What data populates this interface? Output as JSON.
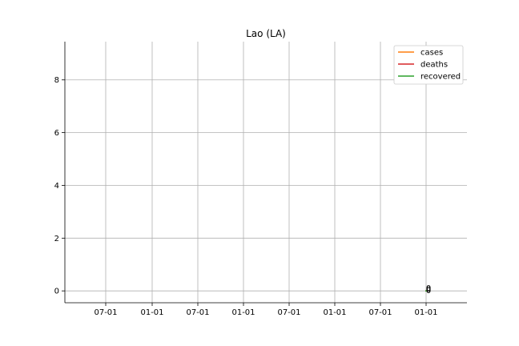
{
  "chart_data": {
    "type": "line",
    "title": "Lao (LA)",
    "xlabel": "",
    "ylabel": "",
    "x_ticks": [
      "07-01",
      "01-01",
      "07-01",
      "01-01",
      "07-01",
      "01-01",
      "07-01",
      "01-01"
    ],
    "y_ticks": [
      0,
      2,
      4,
      6,
      8
    ],
    "ylim": [
      -0.45,
      9.45
    ],
    "grid": true,
    "legend_position": "top-right",
    "series": [
      {
        "name": "cases",
        "color": "#ff7f0e",
        "values": [
          0
        ]
      },
      {
        "name": "deaths",
        "color": "#d62728",
        "values": [
          0
        ]
      },
      {
        "name": "recovered",
        "color": "#2ca02c",
        "values": [
          0
        ]
      }
    ],
    "annotations": [
      {
        "text": "0",
        "x_tick_index": 7,
        "y": 0
      },
      {
        "text": "0",
        "x_tick_index": 7,
        "y": 0
      },
      {
        "text": "0",
        "x_tick_index": 7,
        "y": 0
      }
    ]
  }
}
